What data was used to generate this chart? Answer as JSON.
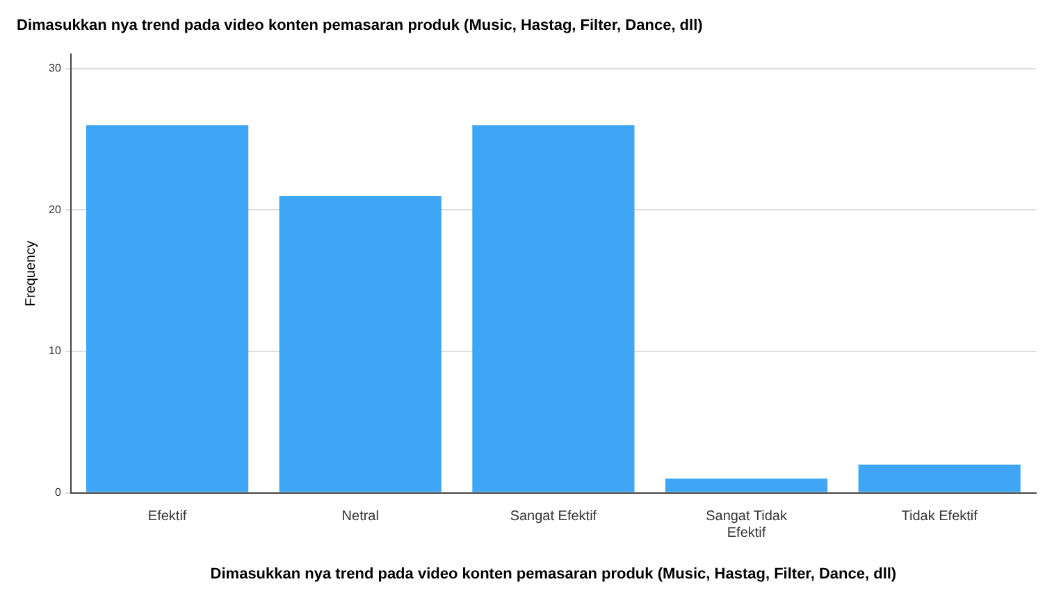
{
  "chart_data": {
    "type": "bar",
    "title": "Dimasukkan nya trend pada video konten pemasaran produk (Music, Hastag, Filter, Dance, dll)",
    "xlabel": "Dimasukkan nya trend pada video konten pemasaran produk (Music, Hastag, Filter, Dance, dll)",
    "ylabel": "Frequency",
    "categories": [
      "Efektif",
      "Netral",
      "Sangat Efektif",
      "Sangat Tidak Efektif",
      "Tidak Efektif"
    ],
    "values": [
      26,
      21,
      26,
      1,
      2
    ],
    "color": "#3ea6f5",
    "ylim": [
      0,
      31
    ],
    "yticks": [
      0,
      10,
      20,
      30
    ],
    "grid": "y"
  }
}
